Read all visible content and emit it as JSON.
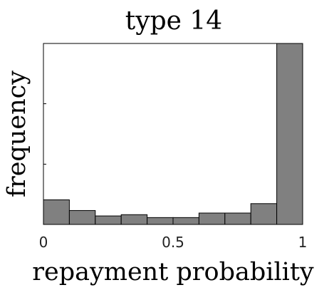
{
  "chart_data": {
    "type": "bar",
    "title": "type 14",
    "xlabel": "repayment probability",
    "ylabel": "frequency",
    "xlim": [
      0,
      1
    ],
    "xticks": [
      {
        "value": 0,
        "label": "0"
      },
      {
        "value": 0.5,
        "label": "0.5"
      },
      {
        "value": 1,
        "label": "1"
      }
    ],
    "yticks_labeled": false,
    "bins": [
      {
        "start": 0.0,
        "end": 0.1,
        "value": 13.6
      },
      {
        "start": 0.1,
        "end": 0.2,
        "value": 7.7
      },
      {
        "start": 0.2,
        "end": 0.3,
        "value": 4.7
      },
      {
        "start": 0.3,
        "end": 0.4,
        "value": 5.4
      },
      {
        "start": 0.4,
        "end": 0.5,
        "value": 3.8
      },
      {
        "start": 0.5,
        "end": 0.6,
        "value": 3.8
      },
      {
        "start": 0.6,
        "end": 0.7,
        "value": 6.3
      },
      {
        "start": 0.7,
        "end": 0.8,
        "value": 6.3
      },
      {
        "start": 0.8,
        "end": 0.9,
        "value": 11.5
      },
      {
        "start": 0.9,
        "end": 1.0,
        "value": 100
      }
    ],
    "ylim": [
      0,
      100
    ],
    "bar_color": "#808080",
    "bar_edge_color": "#000000",
    "grid": false
  }
}
